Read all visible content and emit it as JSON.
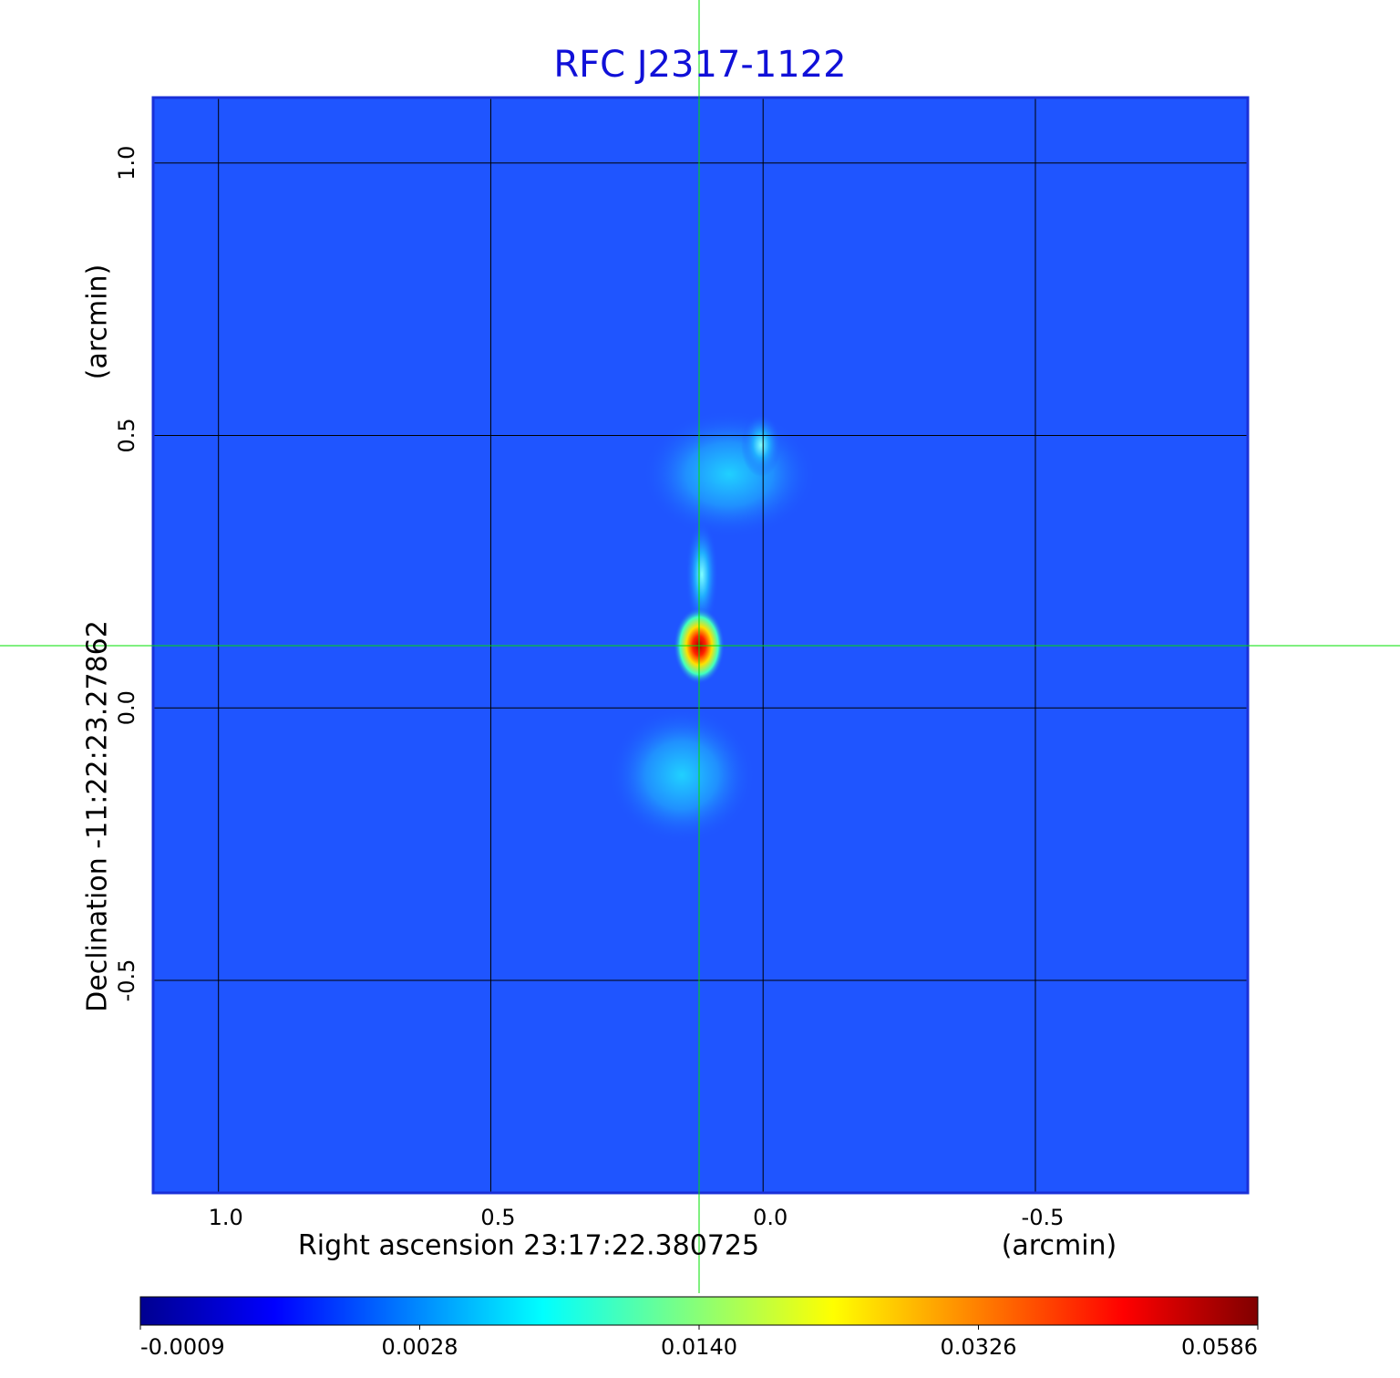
{
  "chart_data": {
    "type": "image",
    "title": "RFC J2317-1122",
    "xlabel": "Right ascension  23:17:22.380725",
    "xunit": "(arcmin)",
    "ylabel": "Declination  -11:22:23.27862",
    "yunit": "(arcmin)",
    "xlim": [
      1.12,
      -0.89
    ],
    "ylim": [
      -0.89,
      1.12
    ],
    "xticks": [
      {
        "value": 1,
        "label": "1.0"
      },
      {
        "value": 0.5,
        "label": "0.5"
      },
      {
        "value": 0,
        "label": "0.0"
      },
      {
        "value": -0.5,
        "label": "-0.5"
      }
    ],
    "yticks": [
      {
        "value": 1,
        "label": "1.0"
      },
      {
        "value": 0.5,
        "label": "0.5"
      },
      {
        "value": 0,
        "label": "0.0"
      },
      {
        "value": -0.5,
        "label": "-0.5"
      }
    ],
    "grid": true,
    "colorbar": {
      "ticks": [
        {
          "value": -0.0009,
          "label": "-0.0009"
        },
        {
          "value": 0.0028,
          "label": "0.0028"
        },
        {
          "value": 0.014,
          "label": "0.0140"
        },
        {
          "value": 0.0326,
          "label": "0.0326"
        },
        {
          "value": 0.0586,
          "label": "0.0586"
        }
      ]
    }
  }
}
